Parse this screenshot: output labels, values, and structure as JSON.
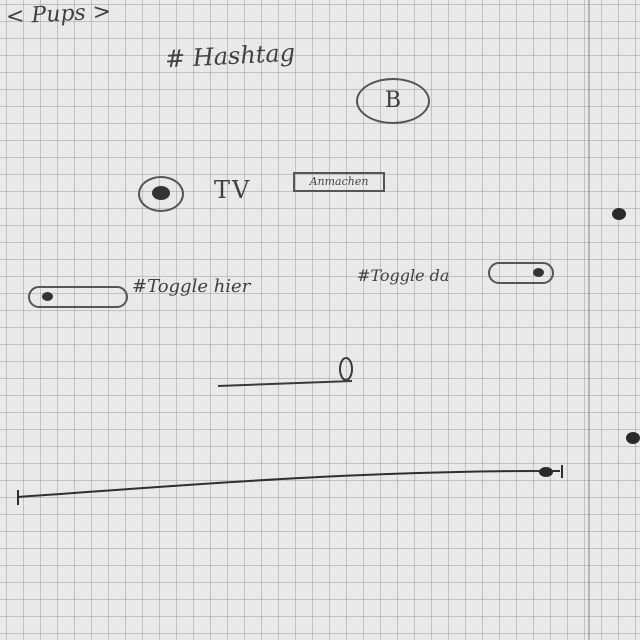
{
  "screen": {
    "title": "< Pups >",
    "hashtag": "# Hashtag",
    "bubble_label": "B",
    "radio_label": "TV",
    "action_button_label": "Anmachen",
    "toggle_left_label": "#Toggle hier",
    "toggle_right_label": "#Toggle da"
  },
  "controls": {
    "radio_selected": true,
    "toggle_left_state": "off",
    "toggle_right_state": "on",
    "slider_small_level": 1.0,
    "slider_large_level": 1.0
  }
}
